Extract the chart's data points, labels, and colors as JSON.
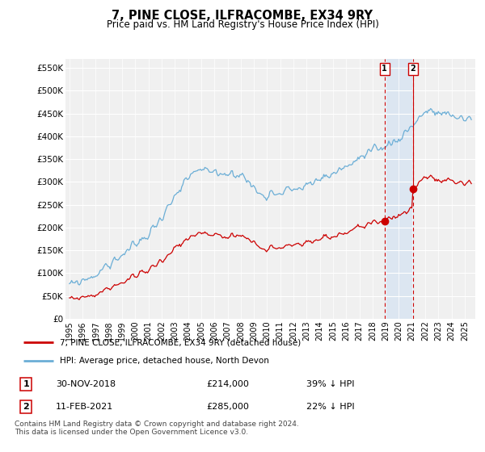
{
  "title": "7, PINE CLOSE, ILFRACOMBE, EX34 9RY",
  "subtitle": "Price paid vs. HM Land Registry's House Price Index (HPI)",
  "ylabel_ticks": [
    "£0",
    "£50K",
    "£100K",
    "£150K",
    "£200K",
    "£250K",
    "£300K",
    "£350K",
    "£400K",
    "£450K",
    "£500K",
    "£550K"
  ],
  "ytick_values": [
    0,
    50000,
    100000,
    150000,
    200000,
    250000,
    300000,
    350000,
    400000,
    450000,
    500000,
    550000
  ],
  "ylim": [
    0,
    570000
  ],
  "hpi_color": "#6baed6",
  "price_color": "#cc0000",
  "t1": 2018.917,
  "t2": 2021.083,
  "price1": 214000,
  "price2": 285000,
  "legend_line1": "7, PINE CLOSE, ILFRACOMBE, EX34 9RY (detached house)",
  "legend_line2": "HPI: Average price, detached house, North Devon",
  "table_row1": [
    "1",
    "30-NOV-2018",
    "£214,000",
    "39% ↓ HPI"
  ],
  "table_row2": [
    "2",
    "11-FEB-2021",
    "£285,000",
    "22% ↓ HPI"
  ],
  "footnote": "Contains HM Land Registry data © Crown copyright and database right 2024.\nThis data is licensed under the Open Government Licence v3.0.",
  "background_color": "#ffffff",
  "plot_bg_color": "#f0f0f0",
  "highlight_bg_color": "#dce6f1",
  "grid_color": "#ffffff",
  "xstart": 1995,
  "xend": 2025
}
